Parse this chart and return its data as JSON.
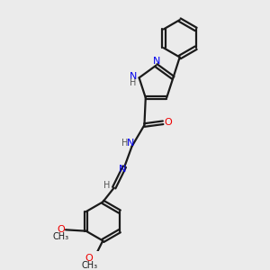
{
  "background_color": "#ebebeb",
  "bond_color": "#1a1a1a",
  "N_color": "#0000ee",
  "O_color": "#ee0000",
  "C_color": "#1a1a1a",
  "font_size": 8,
  "line_width": 1.6,
  "figsize": [
    3.0,
    3.0
  ],
  "dpi": 100,
  "xlim": [
    0,
    10
  ],
  "ylim": [
    0,
    10
  ]
}
